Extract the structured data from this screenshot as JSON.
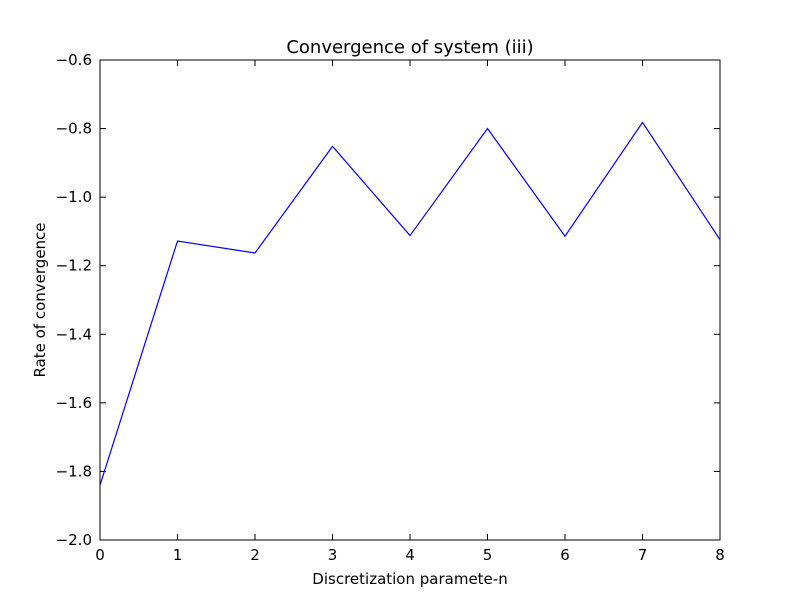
{
  "chart_data": {
    "type": "line",
    "title": "Convergence of system (iii)",
    "xlabel": "Discretization paramete-n",
    "ylabel": "Rate of convergence",
    "xlim": [
      0,
      8
    ],
    "ylim": [
      -2.0,
      -0.6
    ],
    "x_ticks": [
      0,
      1,
      2,
      3,
      4,
      5,
      6,
      7,
      8
    ],
    "x_tick_labels": [
      "0",
      "1",
      "2",
      "3",
      "4",
      "5",
      "6",
      "7",
      "8"
    ],
    "y_ticks": [
      -2.0,
      -1.8,
      -1.6,
      -1.4,
      -1.2,
      -1.0,
      -0.8,
      -0.6
    ],
    "y_tick_labels": [
      "−2.0",
      "−1.8",
      "−1.6",
      "−1.4",
      "−1.2",
      "−1.0",
      "−0.8",
      "−0.6"
    ],
    "grid": false,
    "series": [
      {
        "color": "#0000ff",
        "x": [
          0,
          1,
          2,
          3,
          4,
          5,
          6,
          7,
          8
        ],
        "y": [
          -1.84,
          -1.128,
          -1.163,
          -0.852,
          -1.112,
          -0.8,
          -1.114,
          -0.782,
          -1.124
        ]
      }
    ]
  }
}
